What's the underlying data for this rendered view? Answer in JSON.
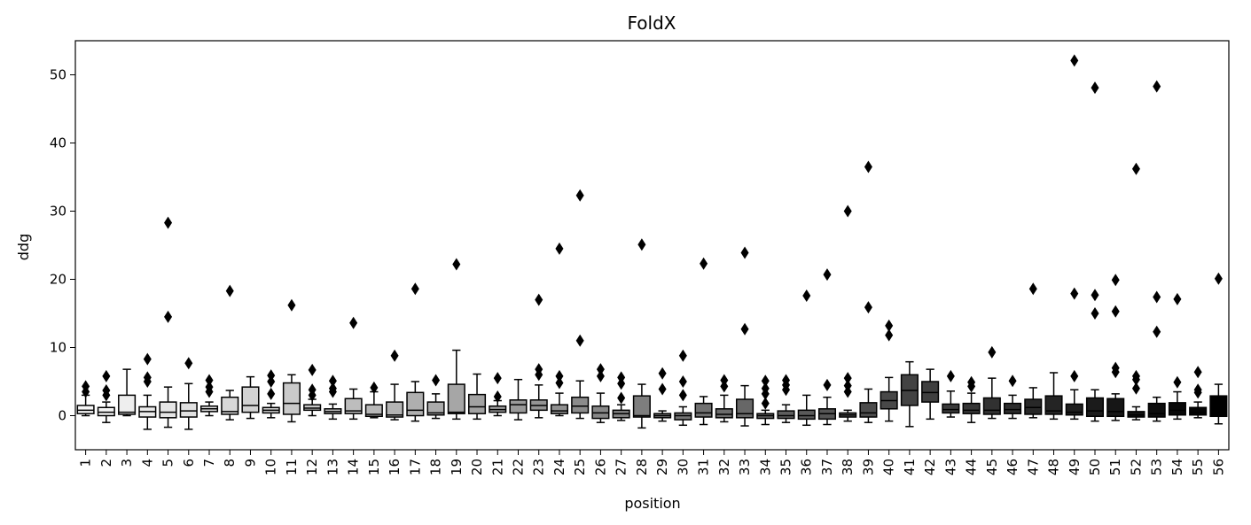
{
  "chart_data": {
    "type": "box",
    "title": "FoldX",
    "xlabel": "position",
    "ylabel": "ddg",
    "ylim": [
      -5,
      55
    ],
    "yticks": [
      0,
      10,
      20,
      30,
      40,
      50
    ],
    "grid": false,
    "legend": "none",
    "color_gradient": [
      "#f7f7f7",
      "#000000"
    ],
    "categories": [
      "1",
      "2",
      "3",
      "4",
      "5",
      "6",
      "7",
      "8",
      "9",
      "10",
      "11",
      "12",
      "13",
      "14",
      "15",
      "16",
      "17",
      "18",
      "19",
      "20",
      "21",
      "22",
      "23",
      "24",
      "25",
      "26",
      "27",
      "28",
      "29",
      "30",
      "31",
      "32",
      "33",
      "34",
      "35",
      "36",
      "37",
      "38",
      "39",
      "40",
      "41",
      "42",
      "43",
      "44",
      "45",
      "46",
      "47",
      "48",
      "49",
      "50",
      "51",
      "52",
      "53",
      "54",
      "55",
      "56"
    ],
    "boxes": [
      {
        "whislo": 0.0,
        "q1": 0.3,
        "med": 0.8,
        "q3": 1.5,
        "whishi": 3.0,
        "fliers": [
          3.5,
          4.3
        ]
      },
      {
        "whislo": -1.0,
        "q1": 0.0,
        "med": 0.5,
        "q3": 1.2,
        "whishi": 2.0,
        "fliers": [
          3.0,
          3.7,
          5.8
        ]
      },
      {
        "whislo": 0.0,
        "q1": 0.2,
        "med": 0.5,
        "q3": 3.0,
        "whishi": 6.8,
        "fliers": []
      },
      {
        "whislo": -2.0,
        "q1": -0.2,
        "med": 0.6,
        "q3": 1.3,
        "whishi": 3.0,
        "fliers": [
          5.0,
          5.6,
          8.3
        ]
      },
      {
        "whislo": -1.7,
        "q1": -0.3,
        "med": 0.5,
        "q3": 2.0,
        "whishi": 4.2,
        "fliers": [
          14.5,
          28.3
        ]
      },
      {
        "whislo": -2.0,
        "q1": -0.2,
        "med": 0.7,
        "q3": 1.9,
        "whishi": 4.7,
        "fliers": [
          7.7
        ]
      },
      {
        "whislo": 0.0,
        "q1": 0.6,
        "med": 1.0,
        "q3": 1.4,
        "whishi": 2.0,
        "fliers": [
          3.5,
          4.2,
          5.2
        ]
      },
      {
        "whislo": -0.6,
        "q1": 0.2,
        "med": 0.6,
        "q3": 2.7,
        "whishi": 3.7,
        "fliers": [
          18.3
        ]
      },
      {
        "whislo": -0.4,
        "q1": 0.5,
        "med": 1.5,
        "q3": 4.2,
        "whishi": 5.7,
        "fliers": []
      },
      {
        "whislo": -0.3,
        "q1": 0.4,
        "med": 0.8,
        "q3": 1.2,
        "whishi": 1.8,
        "fliers": [
          3.2,
          5.0,
          5.9
        ]
      },
      {
        "whislo": -0.9,
        "q1": 0.2,
        "med": 1.8,
        "q3": 4.8,
        "whishi": 6.0,
        "fliers": [
          16.2
        ]
      },
      {
        "whislo": 0.0,
        "q1": 0.8,
        "med": 1.1,
        "q3": 1.6,
        "whishi": 2.4,
        "fliers": [
          3.0,
          3.8,
          6.7
        ]
      },
      {
        "whislo": -0.5,
        "q1": 0.3,
        "med": 0.6,
        "q3": 1.0,
        "whishi": 1.7,
        "fliers": [
          3.5,
          4.0,
          5.1
        ]
      },
      {
        "whislo": -0.5,
        "q1": 0.3,
        "med": 0.7,
        "q3": 2.5,
        "whishi": 3.9,
        "fliers": [
          13.6
        ]
      },
      {
        "whislo": -0.3,
        "q1": -0.1,
        "med": 0.2,
        "q3": 1.6,
        "whishi": 3.5,
        "fliers": [
          4.1
        ]
      },
      {
        "whislo": -0.6,
        "q1": -0.2,
        "med": 0.1,
        "q3": 2.0,
        "whishi": 4.6,
        "fliers": [
          8.8
        ]
      },
      {
        "whislo": -0.8,
        "q1": 0.0,
        "med": 0.8,
        "q3": 3.4,
        "whishi": 5.0,
        "fliers": [
          18.6
        ]
      },
      {
        "whislo": -0.4,
        "q1": 0.1,
        "med": 0.4,
        "q3": 2.0,
        "whishi": 3.2,
        "fliers": [
          5.2
        ]
      },
      {
        "whislo": -0.5,
        "q1": 0.3,
        "med": 0.5,
        "q3": 4.6,
        "whishi": 9.6,
        "fliers": [
          22.2
        ]
      },
      {
        "whislo": -0.5,
        "q1": 0.3,
        "med": 1.3,
        "q3": 3.1,
        "whishi": 6.1,
        "fliers": []
      },
      {
        "whislo": 0.0,
        "q1": 0.5,
        "med": 0.9,
        "q3": 1.4,
        "whishi": 2.2,
        "fliers": [
          2.8,
          5.5
        ]
      },
      {
        "whislo": -0.6,
        "q1": 0.4,
        "med": 1.6,
        "q3": 2.3,
        "whishi": 5.3,
        "fliers": []
      },
      {
        "whislo": -0.3,
        "q1": 0.8,
        "med": 1.5,
        "q3": 2.3,
        "whishi": 4.5,
        "fliers": [
          6.0,
          6.8,
          17.0
        ]
      },
      {
        "whislo": 0.0,
        "q1": 0.3,
        "med": 0.7,
        "q3": 1.6,
        "whishi": 3.3,
        "fliers": [
          4.8,
          5.8,
          24.5
        ]
      },
      {
        "whislo": -0.4,
        "q1": 0.4,
        "med": 1.4,
        "q3": 2.7,
        "whishi": 5.1,
        "fliers": [
          11.0,
          32.3
        ]
      },
      {
        "whislo": -1.0,
        "q1": -0.4,
        "med": 0.4,
        "q3": 1.4,
        "whishi": 3.3,
        "fliers": [
          5.8,
          6.8
        ]
      },
      {
        "whislo": -0.7,
        "q1": -0.3,
        "med": 0.3,
        "q3": 0.8,
        "whishi": 1.6,
        "fliers": [
          2.6,
          4.7,
          5.6
        ]
      },
      {
        "whislo": -1.8,
        "q1": -0.2,
        "med": 0.0,
        "q3": 2.9,
        "whishi": 4.6,
        "fliers": [
          25.1
        ]
      },
      {
        "whislo": -0.8,
        "q1": -0.3,
        "med": 0.0,
        "q3": 0.3,
        "whishi": 0.7,
        "fliers": [
          3.9,
          6.2
        ]
      },
      {
        "whislo": -1.4,
        "q1": -0.6,
        "med": 0.0,
        "q3": 0.4,
        "whishi": 1.3,
        "fliers": [
          3.0,
          5.0,
          8.8
        ]
      },
      {
        "whislo": -1.3,
        "q1": -0.2,
        "med": 0.4,
        "q3": 1.8,
        "whishi": 2.8,
        "fliers": [
          22.3
        ]
      },
      {
        "whislo": -0.9,
        "q1": -0.3,
        "med": 0.2,
        "q3": 1.0,
        "whishi": 3.0,
        "fliers": [
          4.3,
          5.2
        ]
      },
      {
        "whislo": -1.5,
        "q1": -0.3,
        "med": 0.3,
        "q3": 2.4,
        "whishi": 4.4,
        "fliers": [
          12.7,
          23.9
        ]
      },
      {
        "whislo": -1.3,
        "q1": -0.4,
        "med": 0.0,
        "q3": 0.3,
        "whishi": 0.8,
        "fliers": [
          1.8,
          3.2,
          4.0,
          5.1
        ]
      },
      {
        "whislo": -1.0,
        "q1": -0.4,
        "med": 0.0,
        "q3": 0.7,
        "whishi": 1.6,
        "fliers": [
          3.8,
          4.5,
          5.2
        ]
      },
      {
        "whislo": -1.4,
        "q1": -0.5,
        "med": 0.0,
        "q3": 0.8,
        "whishi": 3.0,
        "fliers": [
          17.6
        ]
      },
      {
        "whislo": -1.3,
        "q1": -0.5,
        "med": 0.3,
        "q3": 1.0,
        "whishi": 2.7,
        "fliers": [
          4.5,
          20.7
        ]
      },
      {
        "whislo": -0.8,
        "q1": -0.2,
        "med": 0.1,
        "q3": 0.4,
        "whishi": 0.8,
        "fliers": [
          3.5,
          4.4,
          5.5,
          30.0
        ]
      },
      {
        "whislo": -1.0,
        "q1": -0.2,
        "med": 0.4,
        "q3": 1.9,
        "whishi": 3.9,
        "fliers": [
          15.9,
          36.5
        ]
      },
      {
        "whislo": -0.8,
        "q1": 1.0,
        "med": 2.2,
        "q3": 3.5,
        "whishi": 5.6,
        "fliers": [
          11.8,
          13.2
        ]
      },
      {
        "whislo": -1.6,
        "q1": 1.5,
        "med": 3.7,
        "q3": 6.0,
        "whishi": 7.9,
        "fliers": []
      },
      {
        "whislo": -0.5,
        "q1": 2.0,
        "med": 3.4,
        "q3": 5.0,
        "whishi": 6.8,
        "fliers": []
      },
      {
        "whislo": -0.2,
        "q1": 0.4,
        "med": 0.9,
        "q3": 1.7,
        "whishi": 3.6,
        "fliers": [
          5.8
        ]
      },
      {
        "whislo": -1.0,
        "q1": 0.3,
        "med": 0.8,
        "q3": 1.8,
        "whishi": 3.3,
        "fliers": [
          4.3,
          4.9
        ]
      },
      {
        "whislo": -0.4,
        "q1": 0.2,
        "med": 0.8,
        "q3": 2.6,
        "whishi": 5.5,
        "fliers": [
          9.3
        ]
      },
      {
        "whislo": -0.4,
        "q1": 0.3,
        "med": 0.9,
        "q3": 1.8,
        "whishi": 3.0,
        "fliers": [
          5.1
        ]
      },
      {
        "whislo": -0.3,
        "q1": 0.2,
        "med": 1.2,
        "q3": 2.4,
        "whishi": 4.1,
        "fliers": [
          18.6
        ]
      },
      {
        "whislo": -0.5,
        "q1": 0.2,
        "med": 0.7,
        "q3": 2.9,
        "whishi": 6.3,
        "fliers": []
      },
      {
        "whislo": -0.5,
        "q1": 0.1,
        "med": 0.5,
        "q3": 1.7,
        "whishi": 3.8,
        "fliers": [
          5.8,
          17.9,
          52.1
        ]
      },
      {
        "whislo": -0.8,
        "q1": -0.1,
        "med": 0.7,
        "q3": 2.6,
        "whishi": 3.8,
        "fliers": [
          15.0,
          17.7,
          48.1
        ]
      },
      {
        "whislo": -0.7,
        "q1": -0.1,
        "med": 0.6,
        "q3": 2.5,
        "whishi": 3.2,
        "fliers": [
          6.4,
          7.0,
          15.3,
          19.9
        ]
      },
      {
        "whislo": -0.6,
        "q1": -0.2,
        "med": 0.1,
        "q3": 0.6,
        "whishi": 1.3,
        "fliers": [
          4.0,
          5.3,
          5.8,
          36.2
        ]
      },
      {
        "whislo": -0.8,
        "q1": -0.2,
        "med": 0.3,
        "q3": 1.8,
        "whishi": 2.7,
        "fliers": [
          12.3,
          17.4,
          48.3
        ]
      },
      {
        "whislo": -0.5,
        "q1": 0.1,
        "med": 0.8,
        "q3": 1.9,
        "whishi": 3.5,
        "fliers": [
          4.9,
          17.1
        ]
      },
      {
        "whislo": -0.3,
        "q1": 0.1,
        "med": 0.4,
        "q3": 1.2,
        "whishi": 2.0,
        "fliers": [
          3.4,
          3.8,
          6.4
        ]
      },
      {
        "whislo": -1.2,
        "q1": -0.1,
        "med": 0.2,
        "q3": 2.9,
        "whishi": 4.6,
        "fliers": [
          20.1
        ]
      }
    ]
  }
}
